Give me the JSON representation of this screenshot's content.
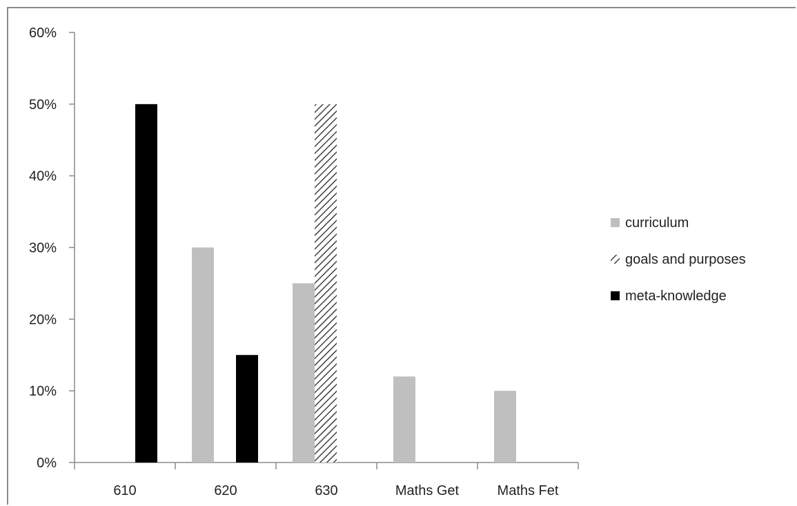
{
  "chart_data": {
    "type": "bar",
    "categories": [
      "610",
      "620",
      "630",
      "Maths Get",
      "Maths Fet"
    ],
    "series": [
      {
        "name": "curriculum",
        "values": [
          0,
          30,
          25,
          12,
          10
        ],
        "color": "#bfbfbf",
        "pattern": "solid"
      },
      {
        "name": "goals and purposes",
        "values": [
          0,
          0,
          50,
          0,
          0
        ],
        "color": "#404040",
        "pattern": "diagonal-hatch"
      },
      {
        "name": "meta-knowledge",
        "values": [
          50,
          15,
          0,
          0,
          0
        ],
        "color": "#000000",
        "pattern": "solid"
      }
    ],
    "ylim": [
      0,
      60
    ],
    "yticks": [
      "0%",
      "10%",
      "20%",
      "30%",
      "40%",
      "50%",
      "60%"
    ],
    "title": "",
    "xlabel": "",
    "ylabel": "",
    "grid": false,
    "legend_position": "right"
  }
}
